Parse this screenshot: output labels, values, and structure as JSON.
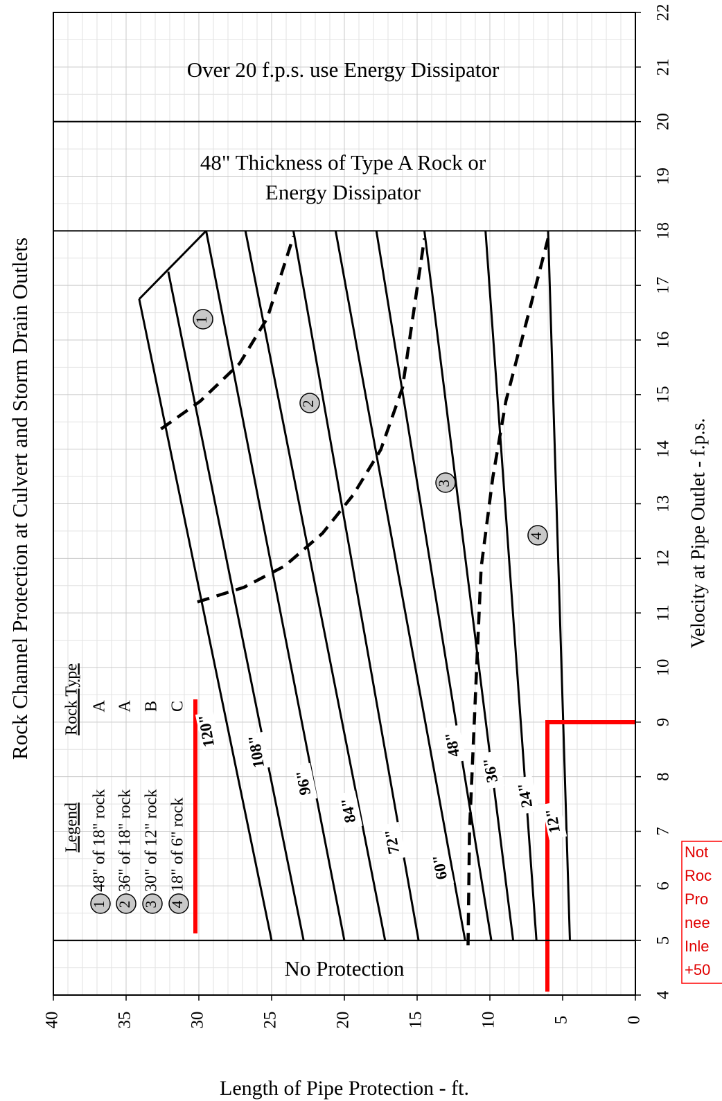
{
  "chart_data": {
    "type": "line",
    "title": "Rock Channel Protection at Culvert and Storm Drain Outlets",
    "xlabel": "Length of Pipe Protection - ft.",
    "ylabel": "Velocity at Pipe Outlet - f.p.s.",
    "xlim": [
      40,
      0
    ],
    "ylim": [
      4,
      22
    ],
    "xticks": [
      40,
      35,
      30,
      25,
      20,
      15,
      10,
      5,
      0
    ],
    "yticks": [
      4,
      5,
      6,
      7,
      8,
      9,
      10,
      11,
      12,
      13,
      14,
      15,
      16,
      17,
      18,
      19,
      20,
      21,
      22
    ],
    "grid": true,
    "series": [
      {
        "name": "120\"",
        "color": "#000000",
        "x": [
          25.0,
          34.1
        ],
        "values": [
          5,
          16.75
        ]
      },
      {
        "name": "108\"",
        "color": "#000000",
        "x": [
          22.8,
          32.1
        ],
        "values": [
          5,
          17.25
        ]
      },
      {
        "name": "96\"",
        "color": "#000000",
        "x": [
          20.0,
          29.5
        ],
        "values": [
          5,
          18
        ]
      },
      {
        "name": "84\"",
        "color": "#000000",
        "x": [
          17.2,
          26.8
        ],
        "values": [
          5,
          18
        ]
      },
      {
        "name": "72\"",
        "color": "#000000",
        "x": [
          14.9,
          23.5
        ],
        "values": [
          5,
          18
        ]
      },
      {
        "name": "60\"",
        "color": "#000000",
        "x": [
          11.7,
          20.6
        ],
        "values": [
          5,
          18
        ]
      },
      {
        "name": "48\"",
        "color": "#000000",
        "x": [
          9.9,
          17.8
        ],
        "values": [
          5,
          18
        ]
      },
      {
        "name": "36\"",
        "color": "#000000",
        "x": [
          8.4,
          14.5
        ],
        "values": [
          5,
          18
        ]
      },
      {
        "name": "24\"",
        "color": "#000000",
        "x": [
          6.8,
          10.3
        ],
        "values": [
          5,
          18
        ]
      },
      {
        "name": "12\"",
        "color": "#000000",
        "x": [
          4.5,
          6.0
        ],
        "values": [
          5,
          18
        ]
      }
    ],
    "outline": {
      "x": [
        34.1,
        29.5
      ],
      "values": [
        16.75,
        18
      ]
    },
    "boundaries": [
      {
        "x": [
          32.6,
          29.9,
          27.2,
          25.3,
          23.5
        ],
        "values": [
          14.37,
          14.88,
          15.57,
          16.4,
          17.9
        ]
      },
      {
        "x": [
          30.1,
          26.9,
          24.1,
          21.5,
          19.4,
          17.5,
          16.0,
          14.5
        ],
        "values": [
          11.2,
          11.47,
          11.86,
          12.46,
          13.16,
          13.99,
          15.13,
          17.86
        ]
      },
      {
        "x": [
          11.5,
          11.4,
          10.9,
          10.6,
          9.8,
          8.9,
          6.0
        ],
        "values": [
          4.91,
          7.0,
          10.05,
          11.83,
          13.48,
          14.88,
          17.86
        ]
      }
    ],
    "zone_lines": [
      5,
      18,
      20
    ],
    "zones": [
      "1",
      "2",
      "3",
      "4"
    ],
    "regions": [
      "Over 20 f.p.s. use Energy Dissipator",
      "48\" Thickness of Type A Rock or",
      "Energy Dissipator",
      "No Protection"
    ],
    "legend": {
      "title": "Legend",
      "type_title": "Rock Type",
      "items": [
        {
          "text": "48\" of 18\" rock",
          "type": "A"
        },
        {
          "text": "36\" of 18\" rock",
          "type": "A"
        },
        {
          "text": "30\" of 12\" rock",
          "type": "B"
        },
        {
          "text": "18\" of  6\" rock",
          "type": "C"
        }
      ]
    },
    "note": [
      "Not",
      "Roc",
      "Pro",
      "nee",
      "Inle",
      "+50"
    ]
  }
}
